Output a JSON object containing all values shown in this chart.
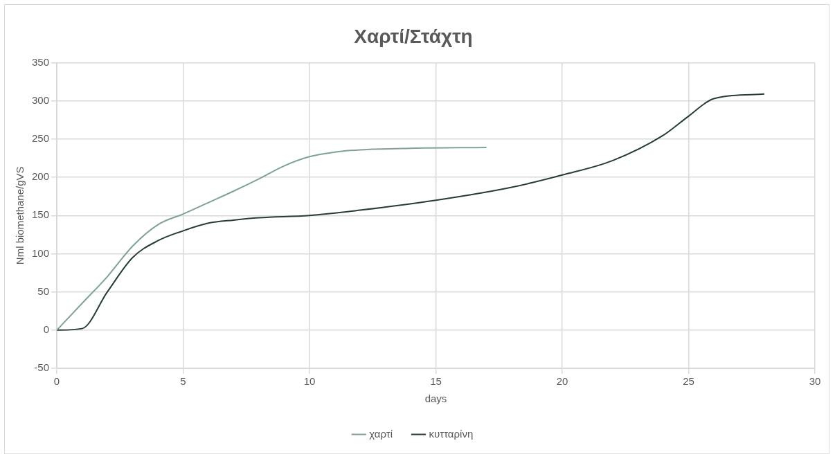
{
  "chart_data": {
    "type": "line",
    "title": "Χαρτί/Στάχτη",
    "xlabel": "days",
    "ylabel": "Nml biomethane/gVS",
    "xlim": [
      0,
      30
    ],
    "xticks": [
      0,
      5,
      10,
      15,
      20,
      25,
      30
    ],
    "ylim": [
      -50,
      350
    ],
    "yticks": [
      -50,
      0,
      50,
      100,
      150,
      200,
      250,
      300,
      350
    ],
    "grid": true,
    "legend": "bottom",
    "marker": "none",
    "series": [
      {
        "name": "χαρτί",
        "color": "#7fa38f",
        "x": [
          0,
          1,
          2,
          3,
          4,
          5,
          6,
          7,
          8,
          9,
          10,
          11,
          12,
          14,
          17
        ],
        "values": [
          0,
          35,
          70,
          110,
          138,
          152,
          167,
          182,
          198,
          215,
          227,
          233,
          236,
          238,
          239
        ]
      },
      {
        "name": "κυτταρίνη",
        "color": "#253d33",
        "x": [
          0,
          1,
          2,
          3,
          4,
          5,
          6,
          7,
          8,
          10,
          12,
          15,
          18,
          20,
          22,
          24,
          25,
          26,
          28
        ],
        "values": [
          0,
          2,
          50,
          95,
          117,
          130,
          140,
          144,
          147,
          150,
          157,
          170,
          187,
          203,
          222,
          255,
          280,
          303,
          309
        ]
      }
    ]
  }
}
